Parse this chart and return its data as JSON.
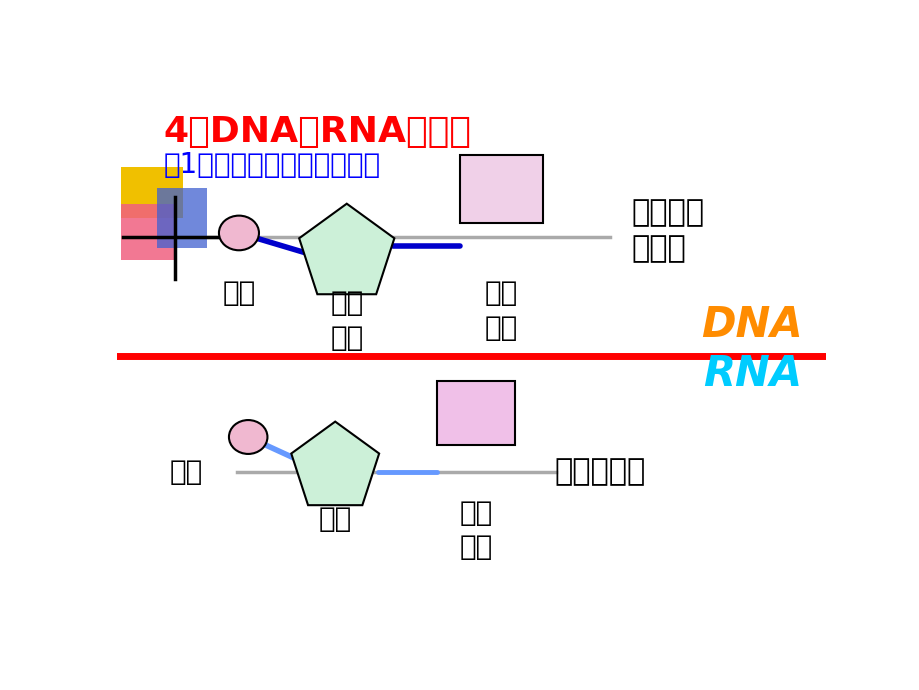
{
  "bg_color": "#ffffff",
  "title": "4、DNA和RNA的区别",
  "subtitle": "（1）基本单位：核苷酸不同",
  "title_color": "#ff0000",
  "subtitle_color": "#0000ff",
  "dna_label": "DNA",
  "rna_label": "RNA",
  "dna_color": "#ff8c00",
  "rna_color": "#00ccff",
  "divider_color": "#ff0000",
  "top_circle_color": "#f0b8d0",
  "top_pentagon_fill": "#ccf0d8",
  "top_rect_fill": "#f0d0e8",
  "top_diag_color": "#0000cc",
  "top_connect_color": "#0000cc",
  "bot_circle_color": "#f0b8d0",
  "bot_pentagon_fill": "#ccf0d8",
  "bot_rect_fill": "#f0c0e8",
  "bot_connect_color": "#6699ff",
  "phosphate_label": "磷酸",
  "deoxyribose_label": "脇氧\n核糖",
  "nitrogenbase_label": "含氮\n碱基",
  "deoxy_nucleotide": "脇氧核糖\n核苷酸",
  "ribose_label": "核糖",
  "nitrogenbase_label2": "含氮\n碱基",
  "ribose_nucleotide": "核糖核苷酸",
  "label_color": "#000000"
}
